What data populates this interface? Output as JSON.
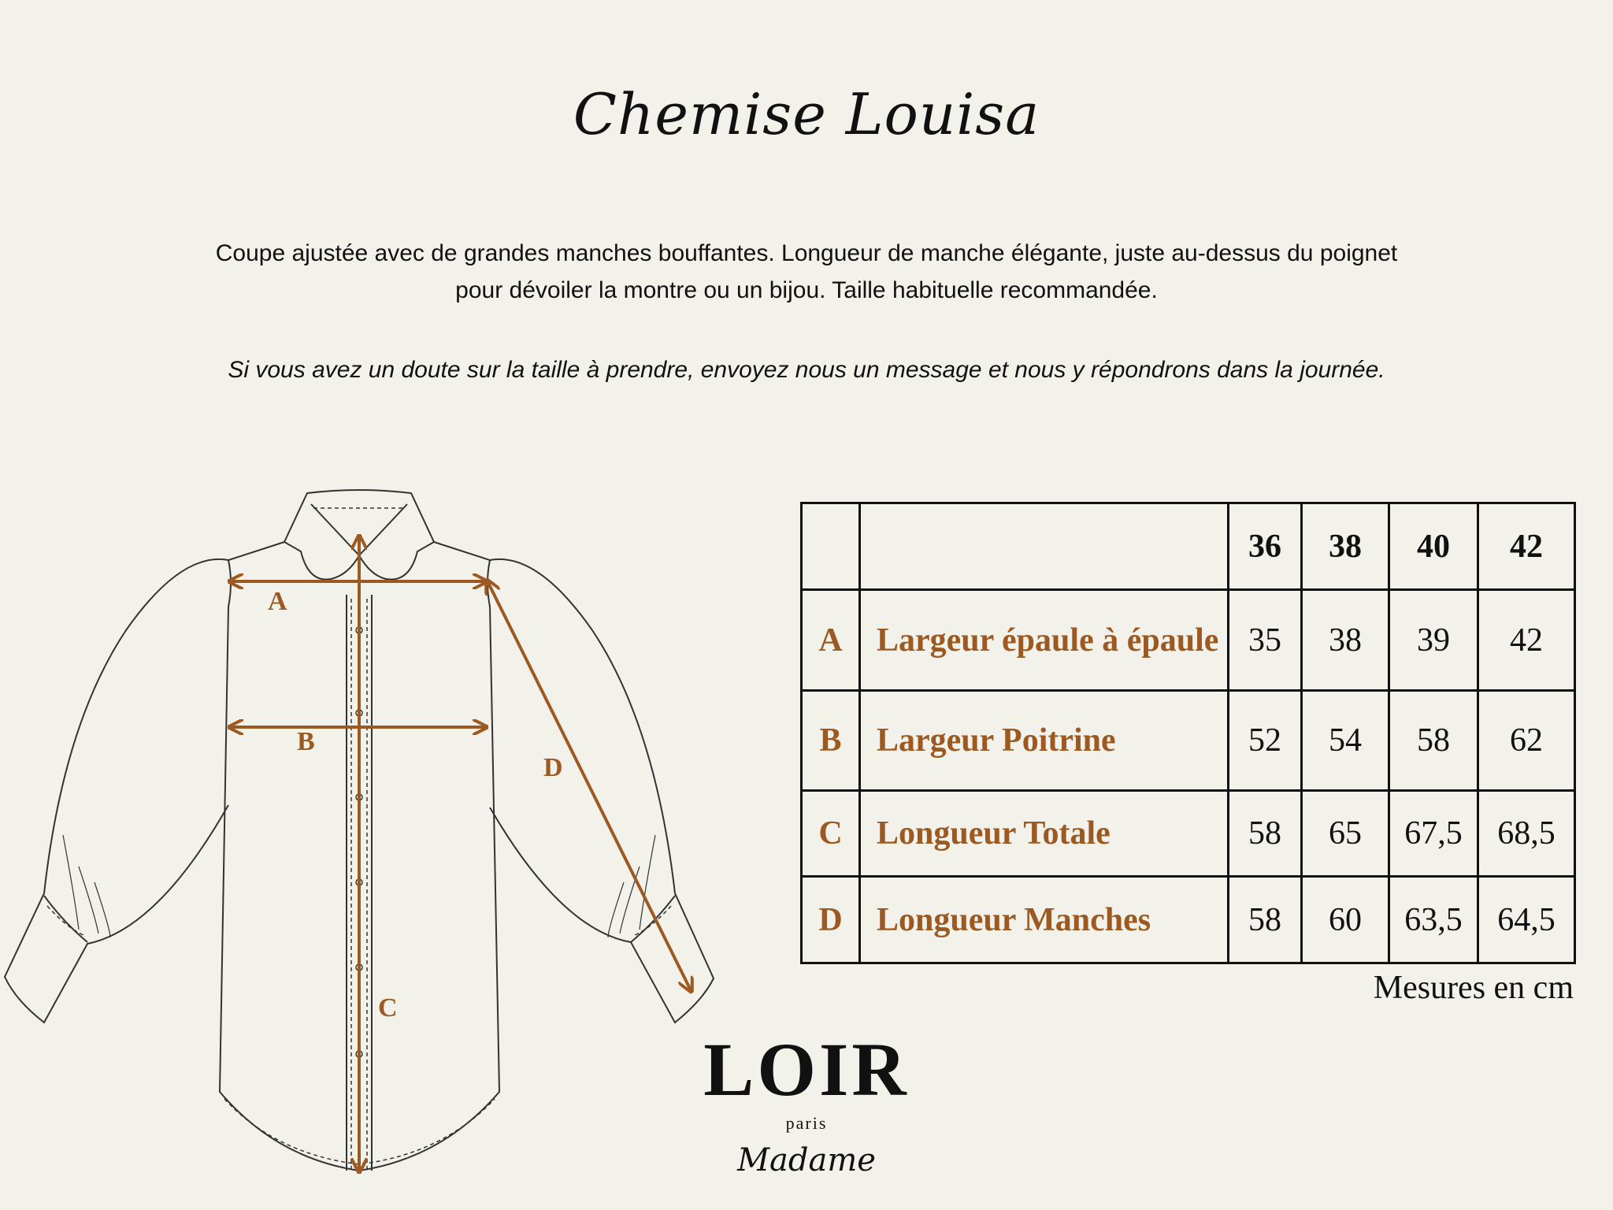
{
  "title": "Chemise Louisa",
  "description": "Coupe ajustée avec de grandes manches bouffantes. Longueur de manche élégante, juste au-dessus du poignet pour dévoiler la montre ou un bijou. Taille habituelle recommandée.",
  "note": "Si vous avez un doute sur la taille à prendre, envoyez nous un message et nous y répondrons dans la journée.",
  "accent_color": "#9c5a22",
  "diagram": {
    "labels": [
      "A",
      "B",
      "C",
      "D"
    ]
  },
  "table": {
    "sizes": [
      "36",
      "38",
      "40",
      "42"
    ],
    "rows": [
      {
        "letter": "A",
        "label": "Largeur épaule à épaule",
        "values": [
          "35",
          "38",
          "39",
          "42"
        ]
      },
      {
        "letter": "B",
        "label": "Largeur Poitrine",
        "values": [
          "52",
          "54",
          "58",
          "62"
        ]
      },
      {
        "letter": "C",
        "label": "Longueur Totale",
        "values": [
          "58",
          "65",
          "67,5",
          "68,5"
        ]
      },
      {
        "letter": "D",
        "label": "Longueur Manches",
        "values": [
          "58",
          "60",
          "63,5",
          "64,5"
        ]
      }
    ],
    "units": "Mesures en cm"
  },
  "brand": {
    "name": "LOIR",
    "city": "paris",
    "line": "Madame"
  }
}
